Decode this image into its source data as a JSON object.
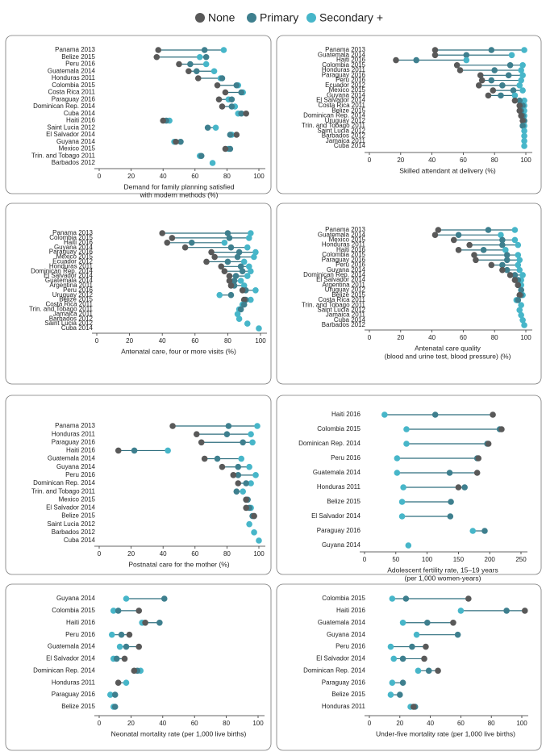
{
  "legend": [
    {
      "name": "None",
      "color": "#595959"
    },
    {
      "name": "Primary",
      "color": "#3e7f8e"
    },
    {
      "name": "Secondary +",
      "color": "#47b6c9"
    }
  ],
  "chart_data": [
    {
      "type": "dot",
      "xlabel": [
        "Demand for family planning satisfied",
        "with modern methods (%)"
      ],
      "xlim": [
        0,
        100
      ],
      "xticks": [
        0,
        20,
        40,
        60,
        80,
        100
      ],
      "categories": [
        "Panama 2013",
        "Belize 2015",
        "Peru 2016",
        "Guatemala 2014",
        "Honduras 2011",
        "Colombia 2015",
        "Costa Rica 2011",
        "Paraguay 2016",
        "Dominican Rep. 2014",
        "Cuba 2014",
        "Haiti 2016",
        "Saint Lucia 2012",
        "El Salvador 2014",
        "Guyana 2014",
        "Mexico 2015",
        "Trin. and Tobago 2011",
        "Barbados 2012"
      ],
      "series": [
        {
          "values": [
            37,
            36,
            50,
            56,
            62,
            74,
            79,
            75,
            77,
            92,
            40,
            null,
            86,
            48,
            79,
            null,
            null
          ]
        },
        {
          "values": [
            66,
            67,
            57,
            61,
            77,
            86,
            89,
            83,
            83,
            89,
            42,
            68,
            82,
            51,
            82,
            64,
            null
          ]
        },
        {
          "values": [
            78,
            63,
            67,
            72,
            76,
            87,
            90,
            81,
            85,
            87,
            44,
            73,
            83,
            47,
            81,
            63,
            71
          ]
        }
      ]
    },
    {
      "type": "dot",
      "xlabel": [
        "Skilled attendant at delivery (%)"
      ],
      "xlim": [
        0,
        100
      ],
      "xticks": [
        0,
        20,
        40,
        60,
        80,
        100
      ],
      "categories": [
        "Panama 2013",
        "Guatemala 2014",
        "Haiti 2016",
        "Colombia 2015",
        "Honduras 2011",
        "Paraguay 2016",
        "Peru 2016",
        "Ecuador 2012",
        "Mexico 2015",
        "Guyana 2014",
        "El Salvador 2014",
        "Costa Rica 2011",
        "Belize 2015",
        "Dominican Rep. 2014",
        "Uruguay 2012",
        "Trin. and Tobago 2011",
        "Saint Lucia 2012",
        "Barbados 2012",
        "Jamaica 2011",
        "Cuba 2014"
      ],
      "series": [
        {
          "values": [
            42,
            42,
            17,
            56,
            58,
            71,
            72,
            70,
            79,
            76,
            93,
            96,
            96,
            97,
            98,
            null,
            null,
            null,
            null,
            null
          ]
        },
        {
          "values": [
            78,
            62,
            30,
            90,
            80,
            89,
            78,
            85,
            92,
            84,
            96,
            98,
            97,
            98,
            99,
            98,
            null,
            null,
            null,
            null
          ]
        },
        {
          "values": [
            99,
            91,
            62,
            98,
            97,
            98,
            97,
            96,
            98,
            93,
            99,
            99,
            99,
            99,
            99,
            99,
            99,
            99,
            99,
            99
          ]
        }
      ]
    },
    {
      "type": "dot",
      "xlabel": [
        "Antenatal care, four or more visits (%)"
      ],
      "xlim": [
        0,
        100
      ],
      "xticks": [
        0,
        20,
        40,
        60,
        80,
        100
      ],
      "categories": [
        "Panama 2013",
        "Colombia 2015",
        "Haiti 2016",
        "Guyana 2014",
        "Paraguay 2016",
        "Mexico 2015",
        "Ecuador 2012",
        "Honduras 2011",
        "Dominican Rep. 2014",
        "El Salvador 2014",
        "Guatemala 2014",
        "Argentina 2011",
        "Peru 2016",
        "Uruguay 2012",
        "Belize 2015",
        "Costa Rica 2011",
        "Trin. and Tobago 2011",
        "Jamaica 2011",
        "Barbados 2012",
        "Saint Lucia 2012",
        "Cuba 2014"
      ],
      "series": [
        {
          "values": [
            40,
            46,
            43,
            54,
            70,
            72,
            67,
            76,
            78,
            81,
            81,
            82,
            89,
            null,
            90,
            null,
            null,
            null,
            null,
            null,
            null
          ]
        },
        {
          "values": [
            80,
            81,
            58,
            82,
            87,
            86,
            80,
            88,
            89,
            85,
            84,
            84,
            91,
            82,
            91,
            90,
            88,
            null,
            null,
            null,
            null
          ]
        },
        {
          "values": [
            94,
            93,
            78,
            92,
            97,
            96,
            90,
            93,
            94,
            92,
            88,
            90,
            97,
            75,
            94,
            89,
            87,
            86,
            87,
            92,
            99
          ]
        }
      ]
    },
    {
      "type": "dot",
      "xlabel": [
        "Antenatal care quality",
        "(blood and urine test, blood pressure) (%)"
      ],
      "xlim": [
        0,
        100
      ],
      "xticks": [
        0,
        20,
        40,
        60,
        80,
        100
      ],
      "categories": [
        "Panama 2013",
        "Guatemala 2014",
        "Mexico 2015",
        "Honduras 2011",
        "Haiti 2016",
        "Colombia 2015",
        "Paraguay 2016",
        "Peru 2016",
        "Guyana 2014",
        "Dominican Rep. 2014",
        "El Salvador 2014",
        "Argentina 2011",
        "Uruguay 2012",
        "Belize 2015",
        "Costa Rica 2011",
        "Trin. and Tobago 2011",
        "Saint Lucia 2012",
        "Jamaica 2011",
        "Cuba 2014",
        "Barbados 2012"
      ],
      "series": [
        {
          "values": [
            44,
            42,
            54,
            64,
            57,
            67,
            68,
            78,
            85,
            90,
            93,
            95,
            null,
            96,
            null,
            null,
            null,
            null,
            null,
            null
          ]
        },
        {
          "values": [
            76,
            57,
            85,
            85,
            73,
            88,
            88,
            85,
            88,
            93,
            95,
            95,
            97,
            97,
            95,
            null,
            null,
            null,
            null,
            null
          ]
        },
        {
          "values": [
            93,
            84,
            93,
            95,
            87,
            95,
            96,
            95,
            96,
            98,
            97,
            97,
            97,
            98,
            94,
            97,
            96,
            97,
            98,
            99
          ]
        }
      ]
    },
    {
      "type": "dot",
      "xlabel": [
        "Postnatal care for the mother (%)"
      ],
      "xlim": [
        0,
        100
      ],
      "xticks": [
        0,
        20,
        40,
        60,
        80,
        100
      ],
      "categories": [
        "Panama 2013",
        "Honduras 2011",
        "Paraguay 2016",
        "Haiti 2016",
        "Guatemala 2014",
        "Guyana 2014",
        "Peru 2016",
        "Dominican Rep. 2014",
        "Trin. and Tobago 2011",
        "Mexico 2015",
        "El Salvador 2014",
        "Belize 2015",
        "Saint Lucia 2012",
        "Barbados 2012",
        "Cuba 2014"
      ],
      "series": [
        {
          "values": [
            46,
            61,
            64,
            12,
            66,
            77,
            84,
            87,
            null,
            92,
            92,
            97,
            null,
            null,
            null
          ]
        },
        {
          "values": [
            81,
            80,
            90,
            22,
            74,
            87,
            87,
            92,
            86,
            93,
            94,
            96,
            null,
            null,
            null
          ]
        },
        {
          "values": [
            99,
            95,
            96,
            43,
            89,
            94,
            98,
            95,
            90,
            92,
            95,
            97,
            94,
            97,
            100
          ]
        }
      ]
    },
    {
      "type": "dot",
      "xlabel": [
        "Adolescent fertility rate, 15–19 years",
        "(per 1,000 women-years)"
      ],
      "xlim": [
        0,
        250
      ],
      "xticks": [
        0,
        50,
        100,
        150,
        200,
        250
      ],
      "categories": [
        "Haiti 2016",
        "Colombia 2015",
        "Dominican Rep. 2014",
        "Peru 2016",
        "Guatemala 2014",
        "Honduras 2011",
        "Belize 2015",
        "El Salvador 2014",
        "Paraguay 2016",
        "Guyana 2014"
      ],
      "series": [
        {
          "values": [
            205,
            219,
            198,
            182,
            180,
            150,
            null,
            null,
            null,
            null
          ]
        },
        {
          "values": [
            113,
            216,
            196,
            180,
            136,
            160,
            138,
            137,
            192,
            null
          ]
        },
        {
          "values": [
            32,
            67,
            67,
            52,
            52,
            62,
            60,
            60,
            173,
            70
          ]
        }
      ]
    },
    {
      "type": "dot",
      "xlabel": [
        "Neonatal mortality rate (per 1,000 live births)"
      ],
      "xlim": [
        0,
        100
      ],
      "xticks": [
        0,
        20,
        40,
        60,
        80,
        100
      ],
      "categories": [
        "Guyana 2014",
        "Colombia 2015",
        "Haiti 2016",
        "Peru 2016",
        "Guatemala 2014",
        "El Salvador 2014",
        "Dominican Rep. 2014",
        "Honduras 2011",
        "Paraguay 2016",
        "Belize 2015"
      ],
      "series": [
        {
          "values": [
            null,
            25,
            29,
            19,
            25,
            16,
            22,
            12,
            null,
            null
          ]
        },
        {
          "values": [
            41,
            12,
            38,
            14,
            17,
            11,
            24,
            null,
            10,
            10
          ]
        },
        {
          "values": [
            17,
            9,
            27,
            8,
            13,
            9,
            26,
            17,
            7,
            9
          ]
        }
      ]
    },
    {
      "type": "dot",
      "xlabel": [
        "Under-five mortality rate (per 1,000 live births)"
      ],
      "xlim": [
        0,
        100
      ],
      "xticks": [
        0,
        20,
        40,
        60,
        80,
        100
      ],
      "categories": [
        "Colombia 2015",
        "Haiti 2016",
        "Guatemala 2014",
        "Guyana 2014",
        "Peru 2016",
        "El Salvador 2014",
        "Dominican Rep. 2014",
        "Paraguay 2016",
        "Belize 2015",
        "Honduras 2011"
      ],
      "series": [
        {
          "values": [
            65,
            102,
            55,
            null,
            37,
            36,
            45,
            null,
            null,
            29
          ]
        },
        {
          "values": [
            24,
            90,
            38,
            58,
            28,
            22,
            39,
            22,
            20,
            30
          ]
        },
        {
          "values": [
            15,
            60,
            22,
            31,
            14,
            16,
            32,
            15,
            14,
            27
          ]
        }
      ]
    }
  ]
}
